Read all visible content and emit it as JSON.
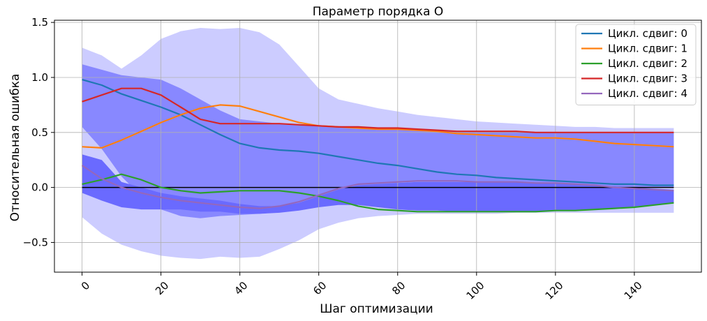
{
  "chart_data": {
    "type": "line",
    "title": "Параметр порядка O",
    "xlabel": "Шаг оптимизации",
    "ylabel": "Относительная ошибка",
    "xlim": [
      -7,
      157
    ],
    "ylim": [
      -0.77,
      1.52
    ],
    "xticks": [
      0,
      20,
      40,
      60,
      80,
      100,
      120,
      140
    ],
    "yticks": [
      -0.5,
      0.0,
      0.5,
      1.0,
      1.5
    ],
    "ytick_labels": [
      "−0.5",
      "0.0",
      "0.5",
      "1.0",
      "1.5"
    ],
    "grid": true,
    "legend_position": "top-right",
    "reference_line": {
      "y": 0.0,
      "color": "#000000"
    },
    "series": [
      {
        "name": "Цикл. сдвиг: 0",
        "color": "#1f77b4",
        "x": [
          0,
          5,
          10,
          15,
          20,
          25,
          30,
          35,
          40,
          45,
          50,
          55,
          60,
          65,
          70,
          75,
          80,
          85,
          90,
          95,
          100,
          105,
          110,
          115,
          120,
          125,
          130,
          135,
          140,
          145,
          150
        ],
        "values": [
          0.98,
          0.93,
          0.85,
          0.79,
          0.73,
          0.66,
          0.57,
          0.48,
          0.4,
          0.36,
          0.34,
          0.33,
          0.31,
          0.28,
          0.25,
          0.22,
          0.2,
          0.17,
          0.14,
          0.12,
          0.11,
          0.09,
          0.08,
          0.07,
          0.06,
          0.05,
          0.04,
          0.03,
          0.03,
          0.02,
          0.02
        ]
      },
      {
        "name": "Цикл. сдвиг: 1",
        "color": "#ff7f0e",
        "x": [
          0,
          5,
          10,
          15,
          20,
          25,
          30,
          35,
          40,
          45,
          50,
          55,
          60,
          65,
          70,
          75,
          80,
          85,
          90,
          95,
          100,
          105,
          110,
          115,
          120,
          125,
          130,
          135,
          140,
          145,
          150
        ],
        "values": [
          0.37,
          0.36,
          0.43,
          0.51,
          0.59,
          0.66,
          0.72,
          0.75,
          0.74,
          0.69,
          0.64,
          0.59,
          0.56,
          0.55,
          0.54,
          0.53,
          0.53,
          0.52,
          0.51,
          0.49,
          0.48,
          0.47,
          0.46,
          0.45,
          0.45,
          0.44,
          0.42,
          0.4,
          0.39,
          0.38,
          0.37
        ]
      },
      {
        "name": "Цикл. сдвиг: 2",
        "color": "#2ca02c",
        "x": [
          0,
          5,
          10,
          15,
          20,
          25,
          30,
          35,
          40,
          45,
          50,
          55,
          60,
          65,
          70,
          75,
          80,
          85,
          90,
          95,
          100,
          105,
          110,
          115,
          120,
          125,
          130,
          135,
          140,
          145,
          150
        ],
        "values": [
          0.03,
          0.07,
          0.12,
          0.07,
          0.0,
          -0.03,
          -0.05,
          -0.04,
          -0.03,
          -0.03,
          -0.03,
          -0.05,
          -0.08,
          -0.12,
          -0.17,
          -0.2,
          -0.21,
          -0.22,
          -0.22,
          -0.22,
          -0.22,
          -0.22,
          -0.22,
          -0.22,
          -0.21,
          -0.21,
          -0.2,
          -0.19,
          -0.18,
          -0.16,
          -0.14
        ]
      },
      {
        "name": "Цикл. сдвиг: 3",
        "color": "#d62728",
        "x": [
          0,
          5,
          10,
          15,
          20,
          25,
          30,
          35,
          40,
          45,
          50,
          55,
          60,
          65,
          70,
          75,
          80,
          85,
          90,
          95,
          100,
          105,
          110,
          115,
          120,
          125,
          130,
          135,
          140,
          145,
          150
        ],
        "values": [
          0.78,
          0.84,
          0.9,
          0.9,
          0.84,
          0.73,
          0.62,
          0.58,
          0.58,
          0.58,
          0.58,
          0.57,
          0.56,
          0.55,
          0.55,
          0.54,
          0.54,
          0.53,
          0.52,
          0.51,
          0.51,
          0.51,
          0.51,
          0.5,
          0.5,
          0.5,
          0.5,
          0.5,
          0.5,
          0.5,
          0.5
        ]
      },
      {
        "name": "Цикл. сдвиг: 4",
        "color": "#9467bd",
        "x": [
          0,
          5,
          10,
          15,
          20,
          25,
          30,
          35,
          40,
          45,
          50,
          55,
          60,
          65,
          70,
          75,
          80,
          85,
          90,
          95,
          100,
          105,
          110,
          115,
          120,
          125,
          130,
          135,
          140,
          145,
          150
        ],
        "values": [
          0.2,
          0.08,
          0.0,
          -0.05,
          -0.09,
          -0.12,
          -0.14,
          -0.16,
          -0.18,
          -0.19,
          -0.17,
          -0.13,
          -0.07,
          -0.01,
          0.03,
          0.04,
          0.05,
          0.06,
          0.06,
          0.06,
          0.05,
          0.05,
          0.05,
          0.04,
          0.04,
          0.03,
          0.02,
          0.0,
          -0.01,
          -0.02,
          -0.03
        ]
      }
    ],
    "bands": {
      "x": [
        0,
        5,
        10,
        15,
        20,
        25,
        30,
        35,
        40,
        45,
        50,
        55,
        60,
        65,
        70,
        75,
        80,
        85,
        90,
        95,
        100,
        105,
        110,
        115,
        120,
        125,
        130,
        135,
        140,
        145,
        150
      ],
      "outer": {
        "color": "#ccccff",
        "upper": [
          1.27,
          1.2,
          1.08,
          1.2,
          1.35,
          1.42,
          1.45,
          1.44,
          1.45,
          1.41,
          1.3,
          1.1,
          0.9,
          0.8,
          0.76,
          0.72,
          0.69,
          0.66,
          0.64,
          0.62,
          0.6,
          0.59,
          0.58,
          0.57,
          0.56,
          0.55,
          0.55,
          0.54,
          0.54,
          0.54,
          0.54
        ],
        "lower": [
          -0.27,
          -0.42,
          -0.52,
          -0.58,
          -0.62,
          -0.64,
          -0.65,
          -0.63,
          -0.64,
          -0.63,
          -0.56,
          -0.48,
          -0.38,
          -0.32,
          -0.28,
          -0.26,
          -0.25,
          -0.24,
          -0.24,
          -0.24,
          -0.24,
          -0.24,
          -0.23,
          -0.23,
          -0.23,
          -0.23,
          -0.23,
          -0.23,
          -0.23,
          -0.23,
          -0.23
        ]
      },
      "inner": {
        "color": "#8888ff",
        "upper": [
          1.12,
          1.07,
          1.02,
          1.0,
          0.98,
          0.9,
          0.8,
          0.7,
          0.62,
          0.6,
          0.58,
          0.57,
          0.56,
          0.55,
          0.55,
          0.54,
          0.54,
          0.53,
          0.52,
          0.51,
          0.51,
          0.51,
          0.51,
          0.5,
          0.5,
          0.5,
          0.5,
          0.5,
          0.5,
          0.5,
          0.5
        ],
        "lower": [
          0.55,
          0.35,
          0.1,
          -0.08,
          -0.2,
          -0.26,
          -0.28,
          -0.26,
          -0.25,
          -0.24,
          -0.22,
          -0.18,
          -0.12,
          -0.05,
          0.0,
          0.02,
          0.04,
          0.05,
          0.05,
          0.05,
          0.05,
          0.05,
          0.05,
          0.04,
          0.04,
          0.03,
          0.02,
          0.01,
          0.0,
          0.0,
          0.0
        ]
      },
      "core": {
        "color": "#6a6aff",
        "upper": [
          0.3,
          0.25,
          0.05,
          0.0,
          -0.05,
          -0.08,
          -0.1,
          -0.12,
          -0.15,
          -0.17,
          -0.17,
          -0.14,
          -0.08,
          -0.02,
          0.02,
          0.03,
          0.04,
          0.05,
          0.05,
          0.05,
          0.05,
          0.05,
          0.05,
          0.04,
          0.04,
          0.03,
          0.02,
          0.01,
          0.0,
          -0.01,
          -0.02
        ],
        "lower": [
          -0.05,
          -0.12,
          -0.18,
          -0.2,
          -0.2,
          -0.2,
          -0.22,
          -0.22,
          -0.24,
          -0.24,
          -0.23,
          -0.21,
          -0.18,
          -0.16,
          -0.16,
          -0.18,
          -0.2,
          -0.21,
          -0.21,
          -0.22,
          -0.22,
          -0.22,
          -0.22,
          -0.22,
          -0.21,
          -0.21,
          -0.2,
          -0.19,
          -0.18,
          -0.16,
          -0.14
        ]
      }
    }
  }
}
